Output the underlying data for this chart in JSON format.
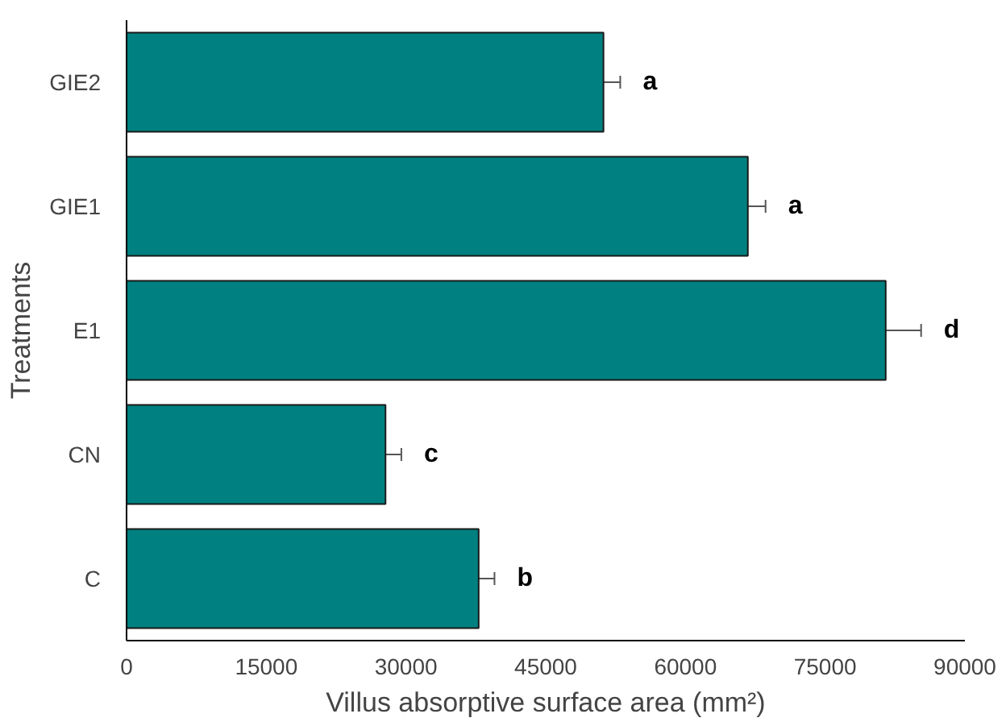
{
  "chart_data": {
    "type": "bar",
    "orientation": "horizontal",
    "xlabel": "Villus absorptive surface area (mm²)",
    "ylabel": "Treatments",
    "categories": [
      "GIE2",
      "GIE1",
      "E1",
      "CN",
      "C"
    ],
    "values": [
      51200,
      66700,
      81500,
      27800,
      37800
    ],
    "errors": [
      1800,
      1900,
      3800,
      1700,
      1700
    ],
    "color": "#008080",
    "xlim": [
      0,
      90000
    ],
    "xticks": [
      0,
      15000,
      30000,
      45000,
      60000,
      75000,
      90000
    ],
    "grid": false,
    "annotations": [
      "a",
      "a",
      "d",
      "c",
      "b"
    ]
  }
}
